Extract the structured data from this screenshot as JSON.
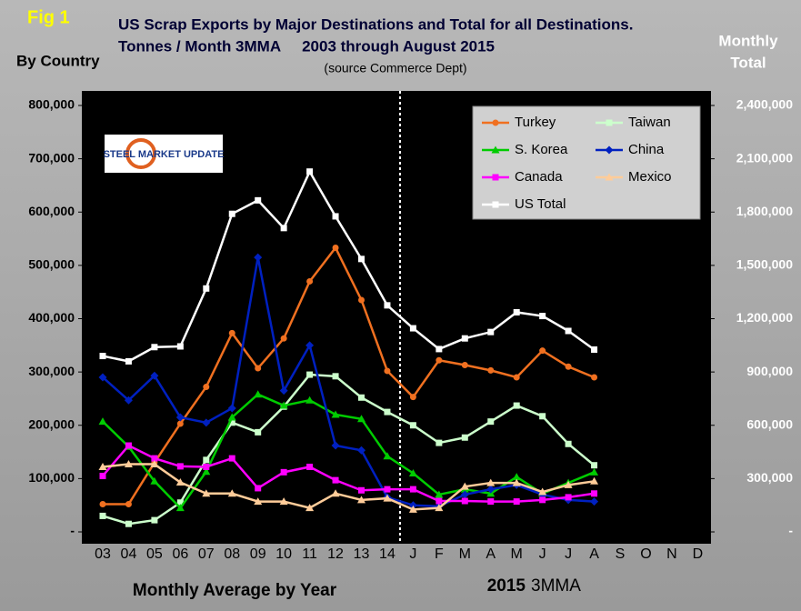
{
  "chart_data": {
    "type": "line",
    "fig_label": "Fig 1",
    "title": "US Scrap Exports by Major Destinations and Total for all Destinations.",
    "subtitle": "Tonnes / Month 3MMA     2003 through August 2015",
    "source": "(source Commerce Dept)",
    "y_label": "By Country",
    "y2_label": [
      "Monthly",
      "Total"
    ],
    "x_label": "Monthly Average by Year",
    "x_label_2": {
      "year": "2015",
      "text": "3MMA"
    },
    "logo": "STEEL MARKET UPDATE",
    "legend": "top-right",
    "categories": [
      "03",
      "04",
      "05",
      "06",
      "07",
      "08",
      "09",
      "10",
      "11",
      "12",
      "13",
      "14",
      "J",
      "F",
      "M",
      "A",
      "M",
      "J",
      "J",
      "A",
      "S",
      "O",
      "N",
      "D"
    ],
    "ylim": [
      0,
      800000
    ],
    "yticks": [
      {
        "value": 0,
        "label": "-"
      },
      {
        "value": 100000,
        "label": "100,000"
      },
      {
        "value": 200000,
        "label": "200,000"
      },
      {
        "value": 300000,
        "label": "300,000"
      },
      {
        "value": 400000,
        "label": "400,000"
      },
      {
        "value": 500000,
        "label": "500,000"
      },
      {
        "value": 600000,
        "label": "600,000"
      },
      {
        "value": 700000,
        "label": "700,000"
      },
      {
        "value": 800000,
        "label": "800,000"
      }
    ],
    "y2lim": [
      0,
      2400000
    ],
    "y2ticks": [
      {
        "value": 0,
        "label": "-"
      },
      {
        "value": 300000,
        "label": "300,000"
      },
      {
        "value": 600000,
        "label": "600,000"
      },
      {
        "value": 900000,
        "label": "900,000"
      },
      {
        "value": 1200000,
        "label": "1,200,000"
      },
      {
        "value": 1500000,
        "label": "1,500,000"
      },
      {
        "value": 1800000,
        "label": "1,800,000"
      },
      {
        "value": 2100000,
        "label": "2,100,000"
      },
      {
        "value": 2400000,
        "label": "2,400,000"
      }
    ],
    "series": [
      {
        "name": "Turkey",
        "color": "#f07020",
        "marker": "circle",
        "values": [
          52000,
          52000,
          130000,
          203000,
          272000,
          373000,
          307000,
          363000,
          470000,
          533000,
          435000,
          302000,
          253000,
          322000,
          313000,
          303000,
          290000,
          340000,
          310000,
          290000,
          null,
          null,
          null,
          null
        ]
      },
      {
        "name": "Taiwan",
        "color": "#ccffcc",
        "marker": "square",
        "values": [
          30000,
          15000,
          22000,
          55000,
          135000,
          205000,
          187000,
          235000,
          295000,
          292000,
          252000,
          225000,
          200000,
          167000,
          177000,
          207000,
          237000,
          217000,
          165000,
          125000,
          null,
          null,
          null,
          null
        ]
      },
      {
        "name": "S. Korea",
        "color": "#00cc00",
        "marker": "triangle",
        "values": [
          207000,
          160000,
          95000,
          45000,
          113000,
          215000,
          258000,
          237000,
          247000,
          220000,
          212000,
          142000,
          110000,
          70000,
          80000,
          72000,
          103000,
          72000,
          92000,
          112000,
          null,
          null,
          null,
          null
        ]
      },
      {
        "name": "China",
        "color": "#0020c0",
        "marker": "diamond",
        "values": [
          290000,
          247000,
          293000,
          215000,
          205000,
          232000,
          515000,
          265000,
          350000,
          162000,
          153000,
          65000,
          50000,
          48000,
          70000,
          80000,
          88000,
          70000,
          60000,
          57000,
          null,
          null,
          null,
          null
        ]
      },
      {
        "name": "Canada",
        "color": "#ff00ff",
        "marker": "square",
        "values": [
          105000,
          162000,
          138000,
          123000,
          122000,
          138000,
          82000,
          112000,
          122000,
          97000,
          78000,
          80000,
          80000,
          58000,
          58000,
          57000,
          57000,
          60000,
          65000,
          72000,
          null,
          null,
          null,
          null
        ]
      },
      {
        "name": "Mexico",
        "color": "#ffcc99",
        "marker": "triangle",
        "values": [
          122000,
          127000,
          127000,
          93000,
          72000,
          72000,
          57000,
          57000,
          45000,
          72000,
          60000,
          63000,
          42000,
          45000,
          85000,
          92000,
          92000,
          75000,
          88000,
          95000,
          null,
          null,
          null,
          null
        ]
      },
      {
        "name": "US Total",
        "color": "#ffffff",
        "marker": "square",
        "axis": "y2",
        "values": [
          990000,
          960000,
          1040000,
          1044000,
          1370000,
          1790000,
          1866000,
          1710000,
          2028000,
          1776000,
          1536000,
          1275000,
          1146000,
          1029000,
          1089000,
          1125000,
          1236000,
          1215000,
          1131000,
          1026000,
          null,
          null,
          null,
          null
        ]
      }
    ]
  }
}
